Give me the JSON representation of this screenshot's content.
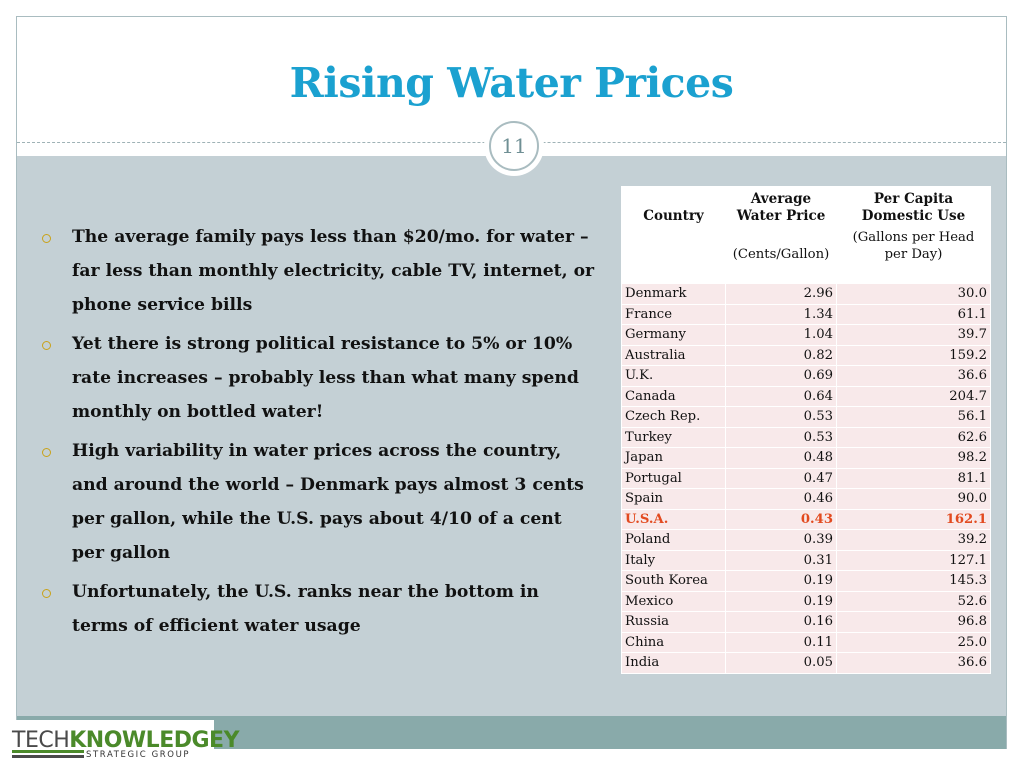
{
  "slide": {
    "title": "Rising Water Prices",
    "slide_number": "11"
  },
  "bullets": [
    "The average family pays less than $20/mo. for water – far less than monthly electricity, cable TV, internet, or phone service bills",
    "Yet there is strong political resistance to 5% or 10% rate increases – probably less than what many spend monthly on bottled water!",
    "High variability in water prices across the country, and around the world – Denmark pays almost 3 cents per gallon, while the U.S. pays about 4/10 of a cent per gallon",
    "Unfortunately, the U.S. ranks near the bottom in terms of efficient water usage"
  ],
  "table": {
    "headers": [
      "Country",
      "Average Water Price",
      "Per  Capita Domestic Use"
    ],
    "units": [
      "",
      "(Cents/Gallon)",
      "(Gallons per Head per Day)"
    ],
    "rows": [
      [
        "Denmark",
        "2.96",
        "30.0"
      ],
      [
        "France",
        "1.34",
        "61.1"
      ],
      [
        "Germany",
        "1.04",
        "39.7"
      ],
      [
        "Australia",
        "0.82",
        "159.2"
      ],
      [
        "U.K.",
        "0.69",
        "36.6"
      ],
      [
        "Canada",
        "0.64",
        "204.7"
      ],
      [
        "Czech Rep.",
        "0.53",
        "56.1"
      ],
      [
        "Turkey",
        "0.53",
        "62.6"
      ],
      [
        "Japan",
        "0.48",
        "98.2"
      ],
      [
        "Portugal",
        "0.47",
        "81.1"
      ],
      [
        "Spain",
        "0.46",
        "90.0"
      ],
      [
        "U.S.A.",
        "0.43",
        "162.1"
      ],
      [
        "Poland",
        "0.39",
        "39.2"
      ],
      [
        "Italy",
        "0.31",
        "127.1"
      ],
      [
        "South Korea",
        "0.19",
        "145.3"
      ],
      [
        "Mexico",
        "0.19",
        "52.6"
      ],
      [
        "Russia",
        "0.16",
        "96.8"
      ],
      [
        "China",
        "0.11",
        "25.0"
      ],
      [
        "India",
        "0.05",
        "36.6"
      ]
    ],
    "highlight_row": "U.S.A.",
    "highlight_color": "#e24a1f"
  },
  "logo": {
    "part1": "TECH",
    "part2": "KNOWLEDGEY",
    "subtitle": "STRATEGIC GROUP"
  },
  "colors": {
    "title": "#1ba1d0",
    "content_background": "#c4d0d5",
    "footer": "#89aaaa",
    "bullet_marker": "#c9a21a"
  }
}
